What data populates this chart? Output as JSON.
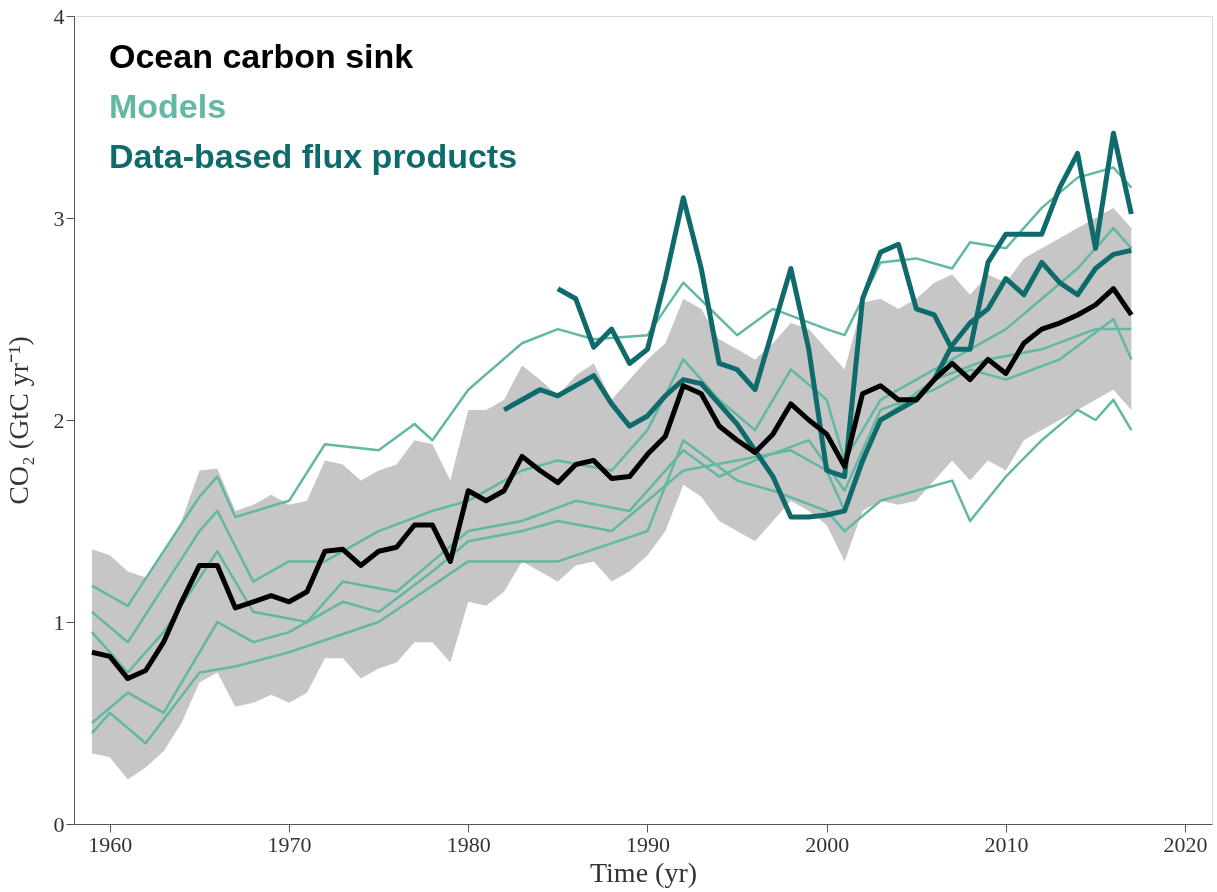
{
  "chart_data": {
    "type": "line",
    "xlabel": "Time (yr)",
    "ylabel": "CO₂ (GtC yr⁻¹)",
    "xlim": [
      1958,
      2021.5
    ],
    "xticks": [
      1960,
      1970,
      1980,
      1990,
      2000,
      2010,
      2020
    ],
    "ylim": [
      0,
      4
    ],
    "yticks": [
      0,
      1,
      2,
      3,
      4
    ],
    "grid": false,
    "legend": "top left",
    "series": [
      {
        "name": null,
        "color": "#62b8a2",
        "x": [
          1959,
          1961,
          1965,
          1966,
          1967,
          1970,
          1972,
          1975,
          1977,
          1978,
          1980,
          1983,
          1985,
          1987,
          1990,
          1992,
          1995,
          1997,
          2000,
          2001,
          2003,
          2005,
          2007,
          2008,
          2010,
          2012,
          2014,
          2016,
          2017
        ],
        "values": [
          1.18,
          1.08,
          1.62,
          1.72,
          1.52,
          1.6,
          1.88,
          1.85,
          1.98,
          1.9,
          2.15,
          2.38,
          2.45,
          2.4,
          2.42,
          2.68,
          2.42,
          2.55,
          2.45,
          2.42,
          2.78,
          2.8,
          2.75,
          2.88,
          2.85,
          3.05,
          3.2,
          3.25,
          3.15
        ]
      },
      {
        "name": null,
        "color": "#62b8a2",
        "x": [
          1959,
          1960,
          1962,
          1965,
          1967,
          1970,
          1975,
          1980,
          1985,
          1990,
          1992,
          1995,
          1997,
          2000,
          2001,
          2003,
          2005,
          2007,
          2008,
          2010,
          2012,
          2014,
          2015,
          2016,
          2017
        ],
        "values": [
          0.45,
          0.55,
          0.4,
          0.75,
          0.78,
          0.85,
          1.0,
          1.3,
          1.3,
          1.45,
          1.9,
          1.7,
          1.65,
          1.55,
          1.45,
          1.6,
          1.65,
          1.7,
          1.5,
          1.72,
          1.9,
          2.05,
          2.0,
          2.1,
          1.95
        ]
      },
      {
        "name": null,
        "color": "#62b8a2",
        "x": [
          1959,
          1961,
          1965,
          1966,
          1968,
          1970,
          1972,
          1975,
          1978,
          1980,
          1983,
          1985,
          1988,
          1990,
          1992,
          1994,
          1996,
          1998,
          2000,
          2001,
          2003,
          2005,
          2008,
          2010,
          2012,
          2014,
          2016,
          2017
        ],
        "values": [
          1.05,
          0.9,
          1.45,
          1.55,
          1.2,
          1.3,
          1.3,
          1.45,
          1.55,
          1.6,
          1.75,
          1.8,
          1.75,
          1.95,
          2.3,
          2.1,
          1.95,
          2.25,
          2.1,
          1.8,
          2.1,
          2.2,
          2.35,
          2.45,
          2.6,
          2.75,
          2.95,
          2.85
        ]
      },
      {
        "name": null,
        "color": "#62b8a2",
        "x": [
          1959,
          1961,
          1963,
          1966,
          1968,
          1971,
          1973,
          1976,
          1978,
          1980,
          1983,
          1986,
          1989,
          1992,
          1994,
          1996,
          1999,
          2001,
          2003,
          2006,
          2008,
          2010,
          2013,
          2016,
          2017
        ],
        "values": [
          0.95,
          0.75,
          0.95,
          1.35,
          1.05,
          1.0,
          1.2,
          1.15,
          1.3,
          1.45,
          1.5,
          1.6,
          1.55,
          1.85,
          1.72,
          1.8,
          1.9,
          1.65,
          2.05,
          2.15,
          2.25,
          2.2,
          2.3,
          2.5,
          2.3
        ]
      },
      {
        "name": "Models",
        "color": "#62b8a2",
        "x": [
          1959,
          1961,
          1963,
          1966,
          1968,
          1970,
          1973,
          1975,
          1978,
          1980,
          1983,
          1985,
          1988,
          1990,
          1992,
          1995,
          1998,
          2000,
          2001,
          2003,
          2006,
          2009,
          2012,
          2015,
          2017
        ],
        "values": [
          0.5,
          0.65,
          0.55,
          1.0,
          0.9,
          0.95,
          1.1,
          1.05,
          1.25,
          1.4,
          1.45,
          1.5,
          1.45,
          1.6,
          1.75,
          1.8,
          1.85,
          1.75,
          1.55,
          2.0,
          2.2,
          2.3,
          2.35,
          2.45,
          2.45
        ]
      },
      {
        "name": "Data-based flux products",
        "color": "#0f6b6b",
        "x": [
          1985,
          1986,
          1987,
          1988,
          1989,
          1990,
          1991,
          1992,
          1993,
          1994,
          1995,
          1996,
          1997,
          1998,
          1999,
          2000,
          2001,
          2002,
          2003,
          2004,
          2005,
          2006,
          2007,
          2008,
          2009,
          2010,
          2011,
          2012,
          2013,
          2014,
          2015,
          2016,
          2017
        ],
        "values": [
          2.65,
          2.6,
          2.36,
          2.45,
          2.28,
          2.35,
          2.7,
          3.1,
          2.75,
          2.28,
          2.25,
          2.15,
          2.45,
          2.75,
          2.35,
          1.75,
          1.72,
          2.6,
          2.83,
          2.87,
          2.55,
          2.52,
          2.35,
          2.35,
          2.78,
          2.92,
          2.92,
          2.92,
          3.15,
          3.32,
          2.85,
          3.42,
          3.02
        ]
      },
      {
        "name": null,
        "color": "#0f6b6b",
        "x": [
          1982,
          1983,
          1984,
          1985,
          1986,
          1987,
          1988,
          1989,
          1990,
          1991,
          1992,
          1993,
          1994,
          1995,
          1996,
          1997,
          1998,
          1999,
          2000,
          2001,
          2002,
          2003,
          2004,
          2005,
          2006,
          2007,
          2008,
          2009,
          2010,
          2011,
          2012,
          2013,
          2014,
          2015,
          2016,
          2017
        ],
        "values": [
          2.05,
          2.1,
          2.15,
          2.12,
          2.17,
          2.22,
          2.08,
          1.97,
          2.02,
          2.12,
          2.2,
          2.18,
          2.08,
          1.98,
          1.85,
          1.72,
          1.52,
          1.52,
          1.53,
          1.55,
          1.8,
          2.0,
          2.05,
          2.1,
          2.2,
          2.37,
          2.48,
          2.55,
          2.7,
          2.62,
          2.78,
          2.68,
          2.62,
          2.75,
          2.82,
          2.84
        ]
      },
      {
        "name": "Ocean carbon sink",
        "color": "#000000",
        "x": [
          1959,
          1960,
          1961,
          1962,
          1963,
          1964,
          1965,
          1966,
          1967,
          1968,
          1969,
          1970,
          1971,
          1972,
          1973,
          1974,
          1975,
          1976,
          1977,
          1978,
          1979,
          1980,
          1981,
          1982,
          1983,
          1984,
          1985,
          1986,
          1987,
          1988,
          1989,
          1990,
          1991,
          1992,
          1993,
          1994,
          1995,
          1996,
          1997,
          1998,
          1999,
          2000,
          2001,
          2002,
          2003,
          2004,
          2005,
          2006,
          2007,
          2008,
          2009,
          2010,
          2011,
          2012,
          2013,
          2014,
          2015,
          2016,
          2017
        ],
        "values": [
          0.85,
          0.83,
          0.72,
          0.76,
          0.9,
          1.1,
          1.28,
          1.28,
          1.07,
          1.1,
          1.13,
          1.1,
          1.15,
          1.35,
          1.36,
          1.28,
          1.35,
          1.37,
          1.48,
          1.48,
          1.3,
          1.65,
          1.6,
          1.65,
          1.82,
          1.75,
          1.69,
          1.78,
          1.8,
          1.71,
          1.72,
          1.83,
          1.92,
          2.17,
          2.13,
          1.97,
          1.9,
          1.84,
          1.93,
          2.08,
          2.0,
          1.93,
          1.77,
          2.13,
          2.17,
          2.1,
          2.1,
          2.2,
          2.28,
          2.2,
          2.3,
          2.23,
          2.38,
          2.45,
          2.48,
          2.52,
          2.57,
          2.65,
          2.52
        ],
        "lower": [
          0.35,
          0.33,
          0.22,
          0.28,
          0.36,
          0.5,
          0.7,
          0.75,
          0.58,
          0.6,
          0.64,
          0.6,
          0.65,
          0.82,
          0.82,
          0.72,
          0.77,
          0.8,
          0.9,
          0.9,
          0.8,
          1.1,
          1.08,
          1.15,
          1.3,
          1.25,
          1.2,
          1.28,
          1.3,
          1.2,
          1.25,
          1.33,
          1.45,
          1.68,
          1.62,
          1.5,
          1.45,
          1.4,
          1.5,
          1.6,
          1.55,
          1.48,
          1.3,
          1.55,
          1.6,
          1.58,
          1.6,
          1.7,
          1.8,
          1.7,
          1.8,
          1.75,
          1.9,
          1.95,
          2.0,
          2.05,
          2.1,
          2.15,
          2.05
        ],
        "upper": [
          1.36,
          1.33,
          1.25,
          1.22,
          1.35,
          1.5,
          1.75,
          1.76,
          1.55,
          1.58,
          1.63,
          1.58,
          1.6,
          1.8,
          1.78,
          1.7,
          1.75,
          1.78,
          1.9,
          1.88,
          1.7,
          2.05,
          2.05,
          2.1,
          2.27,
          2.2,
          2.12,
          2.22,
          2.28,
          2.1,
          2.2,
          2.3,
          2.38,
          2.6,
          2.55,
          2.4,
          2.35,
          2.3,
          2.38,
          2.48,
          2.45,
          2.35,
          2.25,
          2.58,
          2.6,
          2.55,
          2.6,
          2.68,
          2.72,
          2.62,
          2.72,
          2.68,
          2.8,
          2.85,
          2.9,
          2.95,
          3.0,
          3.05,
          2.95
        ]
      }
    ]
  }
}
